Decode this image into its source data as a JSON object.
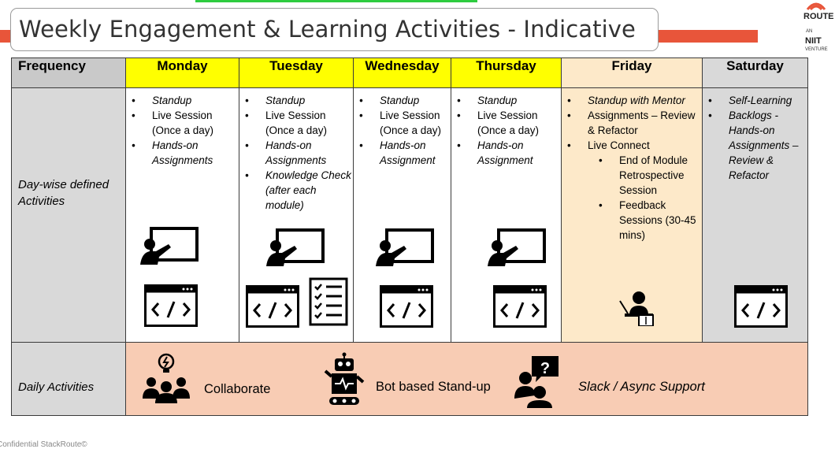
{
  "title": "Weekly Engagement & Learning Activities - Indicative",
  "logo": {
    "route": "ROUTE",
    "an": "AN",
    "niit": "NIIT",
    "venture": "VENTURE"
  },
  "header": {
    "frequency": "Frequency",
    "days": [
      "Monday",
      "Tuesday",
      "Wednesday",
      "Thursday",
      "Friday",
      "Saturday"
    ]
  },
  "row_labels": {
    "activities": "Day-wise defined Activities",
    "daily": "Daily Activities"
  },
  "activities": {
    "monday": [
      "Standup",
      "Live Session (Once a day)",
      "Hands-on Assignments"
    ],
    "tuesday": [
      "Standup",
      "Live Session (Once a day)",
      "Hands-on Assignments",
      "Knowledge Check (after each module)"
    ],
    "wednesday": [
      "Standup",
      "Live Session (Once a day)",
      "Hands-on Assignment"
    ],
    "thursday": [
      "Standup",
      "Live Session (Once a day)",
      "Hands-on Assignment"
    ],
    "friday": {
      "items": [
        "Standup with Mentor",
        "Assignments – Review & Refactor",
        "Live Connect"
      ],
      "sub_items": [
        "End of Module Retrospective Session",
        "Feedback Sessions (30-45 mins)"
      ]
    },
    "saturday": [
      "Self-Learning",
      "Backlogs - Hands-on Assignments – Review & Refactor"
    ]
  },
  "daily_activities": [
    "Collaborate",
    "Bot based Stand-up",
    "Slack / Async Support"
  ],
  "footer": "Confidential StackRoute©",
  "colors": {
    "accent": "#e8553a",
    "weekday_header": "#ffff00",
    "friday": "#fde9c9",
    "weekend": "#d9d9d9",
    "daily_band": "#f8ccb4"
  },
  "icons": [
    "whiteboard-teacher-icon",
    "code-window-icon",
    "checklist-icon",
    "mentor-reading-icon",
    "team-idea-icon",
    "robot-icon",
    "question-support-icon"
  ]
}
